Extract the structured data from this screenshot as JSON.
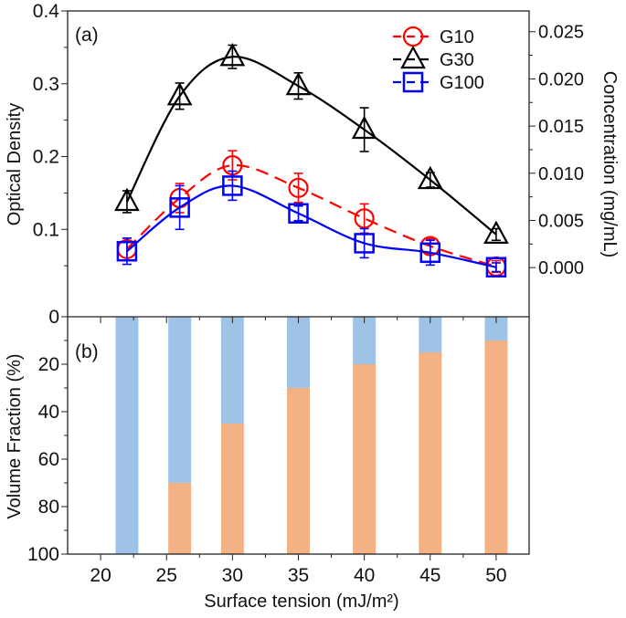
{
  "chart_data": [
    {
      "panel_label": "(a)",
      "type": "line",
      "x": [
        22,
        26,
        30,
        35,
        40,
        45,
        50
      ],
      "xlim": [
        17.5,
        52.5
      ],
      "ylabel": "Optical Density",
      "ylim": [
        -0.02,
        0.4
      ],
      "yticks": [
        "0.1",
        "0.2",
        "0.3",
        "0.4"
      ],
      "ylabel_right": "Concentration (mg/mL)",
      "yticks_right": [
        "0.000",
        "0.005",
        "0.010",
        "0.015",
        "0.020",
        "0.025"
      ],
      "legend_position": "top-right",
      "series": [
        {
          "name": "G10",
          "marker": "circle",
          "color": "#ff0000",
          "dashed": true,
          "values": [
            0.073,
            0.143,
            0.188,
            0.157,
            0.115,
            0.077,
            0.049
          ],
          "errors": [
            0.015,
            0.02,
            0.02,
            0.02,
            0.02,
            0.01,
            0.008
          ]
        },
        {
          "name": "G30",
          "marker": "triangle",
          "color": "#000000",
          "dashed": false,
          "values": [
            0.138,
            0.283,
            0.337,
            0.297,
            0.237,
            0.168,
            0.093
          ],
          "errors": [
            0.015,
            0.018,
            0.016,
            0.018,
            0.03,
            0.01,
            0.008
          ]
        },
        {
          "name": "G100",
          "marker": "square",
          "color": "#0000ff",
          "dashed": false,
          "values": [
            0.07,
            0.13,
            0.16,
            0.122,
            0.081,
            0.068,
            0.048
          ],
          "errors": [
            0.018,
            0.03,
            0.02,
            0.01,
            0.02,
            0.017,
            0.006
          ]
        }
      ]
    },
    {
      "panel_label": "(b)",
      "type": "bar",
      "stacked": true,
      "x": [
        22,
        26,
        30,
        35,
        40,
        45,
        50
      ],
      "ylabel": "Volume Fraction (%)",
      "ylim": [
        0,
        100
      ],
      "y_inverted": true,
      "yticks": [
        "0",
        "20",
        "40",
        "60",
        "80",
        "100"
      ],
      "xlabel": "Surface tension (mJ/m²)",
      "xticks": [
        "20",
        "25",
        "30",
        "35",
        "40",
        "45",
        "50"
      ],
      "series": [
        {
          "color": "#9fc3e7",
          "values": [
            100,
            70,
            45,
            30,
            20,
            15,
            10
          ]
        },
        {
          "color": "#f4b183",
          "values": [
            0,
            30,
            55,
            70,
            80,
            85,
            90
          ]
        }
      ]
    }
  ]
}
